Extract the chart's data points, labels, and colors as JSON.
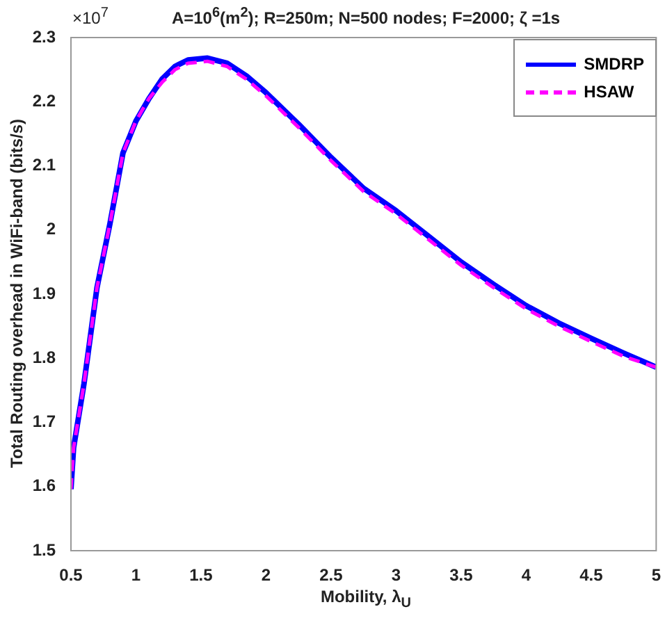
{
  "chart_data": {
    "type": "line",
    "title": "A=10$^{6}$(m$^{2}$); R=250m; N=500 nodes; F=2000; ζ =1s",
    "xlabel": "Mobility, λ$_{U}$",
    "ylabel": "Total Routing overhead in WiFi-band (bits/s)",
    "annotations": [
      "×10$^{7}$"
    ],
    "x": [
      0.5,
      0.52,
      0.6,
      0.7,
      0.8,
      0.9,
      1.0,
      1.1,
      1.2,
      1.3,
      1.4,
      1.55,
      1.7,
      1.85,
      2.0,
      2.25,
      2.5,
      2.75,
      3.0,
      3.25,
      3.5,
      3.75,
      4.0,
      4.25,
      4.5,
      4.75,
      5.0
    ],
    "series": [
      {
        "name": "SMDRP",
        "color": "#0000ff",
        "line_style": "solid",
        "values": [
          1.596,
          1.66,
          1.76,
          1.91,
          2.01,
          2.12,
          2.17,
          2.205,
          2.235,
          2.255,
          2.265,
          2.268,
          2.26,
          2.24,
          2.214,
          2.165,
          2.113,
          2.065,
          2.03,
          1.99,
          1.95,
          1.915,
          1.882,
          1.855,
          1.831,
          1.808,
          1.786
        ]
      },
      {
        "name": "HSAW",
        "color": "#ff00ff",
        "line_style": "dashed",
        "values": [
          1.596,
          1.66,
          1.76,
          1.91,
          2.01,
          2.12,
          2.17,
          2.205,
          2.23,
          2.25,
          2.26,
          2.263,
          2.255,
          2.235,
          2.209,
          2.16,
          2.108,
          2.06,
          2.025,
          1.985,
          1.945,
          1.91,
          1.877,
          1.85,
          1.826,
          1.803,
          1.786
        ]
      }
    ],
    "xlim": [
      0.5,
      5
    ],
    "xticks": [
      0.5,
      1,
      1.5,
      2,
      2.5,
      3,
      3.5,
      4,
      4.5,
      5
    ],
    "ylim": [
      1.5,
      2.3
    ],
    "yticks": [
      1.5,
      1.6,
      1.7,
      1.8,
      1.9,
      2,
      2.1,
      2.2,
      2.3
    ],
    "grid": false,
    "legend": "top right",
    "marker": "none"
  }
}
